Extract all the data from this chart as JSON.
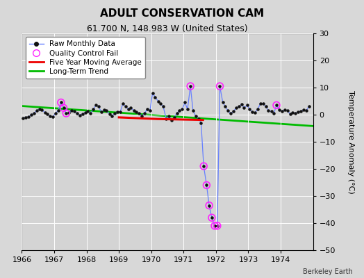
{
  "title": "ADULT CONSERVATION CAM",
  "subtitle": "61.700 N, 148.983 W (United States)",
  "credit": "Berkeley Earth",
  "xlim": [
    1966.0,
    1975.0
  ],
  "ylim": [
    -50,
    30
  ],
  "yticks": [
    -50,
    -40,
    -30,
    -20,
    -10,
    0,
    10,
    20,
    30
  ],
  "xticks": [
    1966,
    1967,
    1968,
    1969,
    1970,
    1971,
    1972,
    1973,
    1974
  ],
  "ylabel": "Temperature Anomaly (°C)",
  "bg_color": "#d8d8d8",
  "plot_bg_color": "#d4d4d4",
  "raw_data": [
    [
      1966.04,
      -1.2
    ],
    [
      1966.12,
      -1.0
    ],
    [
      1966.21,
      -0.8
    ],
    [
      1966.29,
      0.0
    ],
    [
      1966.37,
      0.5
    ],
    [
      1966.46,
      1.5
    ],
    [
      1966.54,
      2.0
    ],
    [
      1966.62,
      1.8
    ],
    [
      1966.71,
      0.8
    ],
    [
      1966.79,
      0.2
    ],
    [
      1966.87,
      -0.5
    ],
    [
      1966.96,
      -0.8
    ],
    [
      1967.04,
      0.5
    ],
    [
      1967.12,
      1.5
    ],
    [
      1967.21,
      4.5
    ],
    [
      1967.29,
      2.5
    ],
    [
      1967.37,
      0.5
    ],
    [
      1967.46,
      0.8
    ],
    [
      1967.54,
      1.5
    ],
    [
      1967.62,
      1.2
    ],
    [
      1967.71,
      0.5
    ],
    [
      1967.79,
      -0.3
    ],
    [
      1967.87,
      0.3
    ],
    [
      1967.96,
      0.8
    ],
    [
      1968.04,
      1.2
    ],
    [
      1968.12,
      0.5
    ],
    [
      1968.21,
      2.0
    ],
    [
      1968.29,
      3.5
    ],
    [
      1968.37,
      3.0
    ],
    [
      1968.46,
      1.0
    ],
    [
      1968.54,
      1.8
    ],
    [
      1968.62,
      1.5
    ],
    [
      1968.71,
      0.3
    ],
    [
      1968.79,
      -0.5
    ],
    [
      1968.87,
      0.5
    ],
    [
      1968.96,
      1.0
    ],
    [
      1969.04,
      1.0
    ],
    [
      1969.12,
      4.0
    ],
    [
      1969.21,
      3.0
    ],
    [
      1969.29,
      2.0
    ],
    [
      1969.37,
      2.5
    ],
    [
      1969.46,
      1.5
    ],
    [
      1969.54,
      1.0
    ],
    [
      1969.62,
      0.5
    ],
    [
      1969.71,
      -0.5
    ],
    [
      1969.79,
      0.5
    ],
    [
      1969.87,
      2.0
    ],
    [
      1969.96,
      1.5
    ],
    [
      1970.04,
      8.0
    ],
    [
      1970.12,
      6.5
    ],
    [
      1970.21,
      5.0
    ],
    [
      1970.29,
      4.0
    ],
    [
      1970.37,
      3.0
    ],
    [
      1970.46,
      -1.5
    ],
    [
      1970.54,
      -0.5
    ],
    [
      1970.62,
      -2.0
    ],
    [
      1970.71,
      -1.0
    ],
    [
      1970.79,
      0.5
    ],
    [
      1970.87,
      1.5
    ],
    [
      1970.96,
      2.0
    ],
    [
      1971.04,
      4.5
    ],
    [
      1971.12,
      2.0
    ],
    [
      1971.21,
      10.5
    ],
    [
      1971.29,
      1.5
    ],
    [
      1971.37,
      -0.5
    ],
    [
      1971.46,
      -1.5
    ],
    [
      1971.54,
      -3.0
    ],
    [
      1971.62,
      -19.0
    ],
    [
      1971.71,
      -26.0
    ],
    [
      1971.79,
      -33.5
    ],
    [
      1971.87,
      -38.0
    ],
    [
      1971.96,
      -41.0
    ],
    [
      1972.04,
      -41.0
    ],
    [
      1972.12,
      10.5
    ],
    [
      1972.21,
      4.5
    ],
    [
      1972.29,
      3.0
    ],
    [
      1972.37,
      1.5
    ],
    [
      1972.46,
      0.5
    ],
    [
      1972.54,
      1.2
    ],
    [
      1972.62,
      2.5
    ],
    [
      1972.71,
      3.0
    ],
    [
      1972.79,
      3.8
    ],
    [
      1972.87,
      2.5
    ],
    [
      1972.96,
      3.5
    ],
    [
      1973.04,
      2.0
    ],
    [
      1973.12,
      1.0
    ],
    [
      1973.21,
      0.8
    ],
    [
      1973.29,
      2.0
    ],
    [
      1973.37,
      4.0
    ],
    [
      1973.46,
      4.2
    ],
    [
      1973.54,
      3.0
    ],
    [
      1973.62,
      1.5
    ],
    [
      1973.71,
      1.2
    ],
    [
      1973.79,
      0.5
    ],
    [
      1973.87,
      3.5
    ],
    [
      1973.96,
      1.8
    ],
    [
      1974.04,
      1.2
    ],
    [
      1974.12,
      1.8
    ],
    [
      1974.21,
      1.5
    ],
    [
      1974.29,
      0.3
    ],
    [
      1974.37,
      0.8
    ],
    [
      1974.46,
      0.5
    ],
    [
      1974.54,
      1.0
    ],
    [
      1974.62,
      1.2
    ],
    [
      1974.71,
      1.8
    ],
    [
      1974.79,
      1.5
    ],
    [
      1974.87,
      3.0
    ]
  ],
  "qc_fail_points": [
    [
      1967.21,
      4.5
    ],
    [
      1967.29,
      2.5
    ],
    [
      1967.37,
      0.5
    ],
    [
      1971.21,
      10.5
    ],
    [
      1971.62,
      -19.0
    ],
    [
      1971.71,
      -26.0
    ],
    [
      1971.79,
      -33.5
    ],
    [
      1971.87,
      -38.0
    ],
    [
      1971.96,
      -41.0
    ],
    [
      1972.04,
      -41.0
    ],
    [
      1972.12,
      10.5
    ],
    [
      1973.87,
      3.5
    ]
  ],
  "moving_avg": [
    [
      1969.0,
      -1.0
    ],
    [
      1969.2,
      -1.1
    ],
    [
      1969.4,
      -1.2
    ],
    [
      1969.6,
      -1.3
    ],
    [
      1969.8,
      -1.4
    ],
    [
      1970.0,
      -1.5
    ],
    [
      1970.2,
      -1.6
    ],
    [
      1970.4,
      -1.65
    ],
    [
      1970.6,
      -1.7
    ],
    [
      1970.8,
      -1.75
    ],
    [
      1971.0,
      -1.8
    ],
    [
      1971.2,
      -1.85
    ],
    [
      1971.4,
      -1.9
    ],
    [
      1971.6,
      -1.95
    ]
  ],
  "trend_x": [
    1966.0,
    1975.0
  ],
  "trend_y": [
    3.2,
    -4.2
  ],
  "raw_line_color": "#6680ff",
  "raw_dot_color": "#111111",
  "qc_color": "#ff22ff",
  "ma_color": "#ee0000",
  "trend_color": "#00bb00",
  "title_fontsize": 11,
  "subtitle_fontsize": 9,
  "tick_fontsize": 8,
  "legend_fontsize": 7.5,
  "credit_fontsize": 7
}
